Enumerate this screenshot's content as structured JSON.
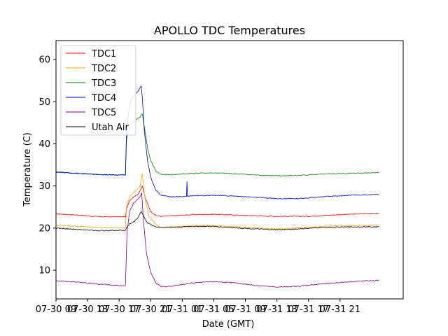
{
  "chart_data": {
    "type": "line",
    "title": "APOLLO TDC Temperatures",
    "xlabel": "Date (GMT)",
    "ylabel": "Temperature (C)",
    "xlim": [
      0,
      33
    ],
    "ylim": [
      3.2,
      64.5
    ],
    "yticks": [
      10,
      20,
      30,
      40,
      50,
      60
    ],
    "xticks": [
      {
        "x": 0,
        "label": "07-30 09"
      },
      {
        "x": 3,
        "label": "07-30 13"
      },
      {
        "x": 6,
        "label": "07-30 17"
      },
      {
        "x": 9,
        "label": "07-30 21"
      },
      {
        "x": 12,
        "label": "07-31 01"
      },
      {
        "x": 15,
        "label": "07-31 05"
      },
      {
        "x": 18,
        "label": "07-31 09"
      },
      {
        "x": 21,
        "label": "07-31 13"
      },
      {
        "x": 24,
        "label": "07-31 17"
      },
      {
        "x": 27,
        "label": "07-31 21"
      }
    ],
    "legend_position": "top-left",
    "series": [
      {
        "name": "TDC1",
        "color": "#ff0000",
        "points": [
          [
            0,
            23.4
          ],
          [
            2,
            23.1
          ],
          [
            4,
            22.7
          ],
          [
            6.6,
            22.7
          ],
          [
            6.7,
            24.5
          ],
          [
            7.0,
            26.5
          ],
          [
            7.4,
            27.5
          ],
          [
            7.8,
            28.0
          ],
          [
            8.0,
            29.0
          ],
          [
            8.2,
            30.0
          ],
          [
            8.5,
            27.0
          ],
          [
            9.0,
            24.0
          ],
          [
            9.5,
            23.0
          ],
          [
            10,
            22.8
          ],
          [
            11,
            22.9
          ],
          [
            13,
            23.2
          ],
          [
            15,
            23.3
          ],
          [
            18,
            23.0
          ],
          [
            21,
            22.8
          ],
          [
            24,
            22.8
          ],
          [
            27,
            23.2
          ],
          [
            29,
            23.4
          ],
          [
            30.7,
            23.5
          ]
        ]
      },
      {
        "name": "TDC2",
        "color": "#ffa500",
        "points": [
          [
            0,
            20.7
          ],
          [
            3,
            20.3
          ],
          [
            6.6,
            20.0
          ],
          [
            6.7,
            25.0
          ],
          [
            7.0,
            27.5
          ],
          [
            7.4,
            28.5
          ],
          [
            8.0,
            30.0
          ],
          [
            8.2,
            33.0
          ],
          [
            8.4,
            28.0
          ],
          [
            8.8,
            23.0
          ],
          [
            9.5,
            20.8
          ],
          [
            10,
            20.2
          ],
          [
            11,
            20.3
          ],
          [
            13,
            20.6
          ],
          [
            15,
            20.6
          ],
          [
            18,
            20.2
          ],
          [
            21,
            19.8
          ],
          [
            24,
            20.2
          ],
          [
            27,
            20.6
          ],
          [
            30.7,
            20.7
          ]
        ]
      },
      {
        "name": "TDC3",
        "color": "#008000",
        "points": [
          [
            0,
            33.3
          ],
          [
            2,
            33.0
          ],
          [
            4,
            32.7
          ],
          [
            6.6,
            32.6
          ],
          [
            6.7,
            41.0
          ],
          [
            7.0,
            44.0
          ],
          [
            7.4,
            45.5
          ],
          [
            8.0,
            46.4
          ],
          [
            8.2,
            47.2
          ],
          [
            8.4,
            44.0
          ],
          [
            8.7,
            39.0
          ],
          [
            9.0,
            36.0
          ],
          [
            9.5,
            33.5
          ],
          [
            10,
            32.7
          ],
          [
            11,
            32.7
          ],
          [
            13,
            33.0
          ],
          [
            15,
            33.1
          ],
          [
            17,
            32.9
          ],
          [
            19,
            32.6
          ],
          [
            21,
            32.4
          ],
          [
            23,
            32.5
          ],
          [
            25,
            32.8
          ],
          [
            28,
            33.0
          ],
          [
            30.7,
            33.2
          ]
        ]
      },
      {
        "name": "TDC4",
        "color": "#0000cd",
        "points": [
          [
            0,
            33.3
          ],
          [
            2,
            33.0
          ],
          [
            4,
            32.7
          ],
          [
            6.6,
            32.6
          ],
          [
            6.7,
            43.0
          ],
          [
            7.0,
            49.5
          ],
          [
            7.4,
            51.5
          ],
          [
            7.8,
            52.5
          ],
          [
            8.1,
            53.8
          ],
          [
            8.2,
            51.0
          ],
          [
            8.4,
            43.0
          ],
          [
            8.7,
            36.0
          ],
          [
            9.0,
            32.0
          ],
          [
            9.5,
            29.0
          ],
          [
            10,
            27.8
          ],
          [
            11,
            27.4
          ],
          [
            12,
            27.5
          ],
          [
            12.4,
            27.6
          ],
          [
            12.45,
            31.0
          ],
          [
            12.5,
            27.6
          ],
          [
            13,
            27.7
          ],
          [
            15,
            27.8
          ],
          [
            17,
            27.6
          ],
          [
            19,
            27.3
          ],
          [
            21,
            27.0
          ],
          [
            23,
            27.0
          ],
          [
            25,
            27.4
          ],
          [
            28,
            27.8
          ],
          [
            30.7,
            28.0
          ]
        ]
      },
      {
        "name": "TDC5",
        "color": "#800080",
        "points": [
          [
            0,
            7.5
          ],
          [
            2,
            7.2
          ],
          [
            4,
            6.7
          ],
          [
            6.6,
            6.3
          ],
          [
            6.75,
            19.0
          ],
          [
            7.0,
            24.0
          ],
          [
            7.4,
            26.0
          ],
          [
            8.0,
            27.5
          ],
          [
            8.15,
            28.3
          ],
          [
            8.3,
            22.0
          ],
          [
            8.6,
            14.0
          ],
          [
            9.0,
            9.5
          ],
          [
            9.5,
            7.0
          ],
          [
            10,
            6.1
          ],
          [
            11,
            6.2
          ],
          [
            13,
            7.0
          ],
          [
            15,
            7.3
          ],
          [
            17,
            7.0
          ],
          [
            19,
            6.4
          ],
          [
            21,
            6.0
          ],
          [
            23,
            6.2
          ],
          [
            25,
            6.7
          ],
          [
            28,
            7.3
          ],
          [
            30.7,
            7.6
          ]
        ]
      },
      {
        "name": "Utah Air",
        "color": "#000000",
        "points": [
          [
            0,
            20.0
          ],
          [
            2,
            19.7
          ],
          [
            4,
            19.4
          ],
          [
            6.6,
            19.5
          ],
          [
            6.7,
            20.0
          ],
          [
            7.0,
            21.0
          ],
          [
            7.4,
            21.5
          ],
          [
            7.8,
            22.5
          ],
          [
            8.1,
            24.0
          ],
          [
            8.3,
            23.0
          ],
          [
            8.6,
            21.5
          ],
          [
            9.0,
            20.8
          ],
          [
            9.5,
            20.3
          ],
          [
            10,
            20.2
          ],
          [
            11,
            20.2
          ],
          [
            13,
            20.4
          ],
          [
            15,
            20.4
          ],
          [
            17,
            20.1
          ],
          [
            19,
            19.8
          ],
          [
            21,
            19.6
          ],
          [
            23,
            19.8
          ],
          [
            25,
            20.1
          ],
          [
            28,
            20.3
          ],
          [
            30.7,
            20.3
          ]
        ]
      }
    ]
  }
}
